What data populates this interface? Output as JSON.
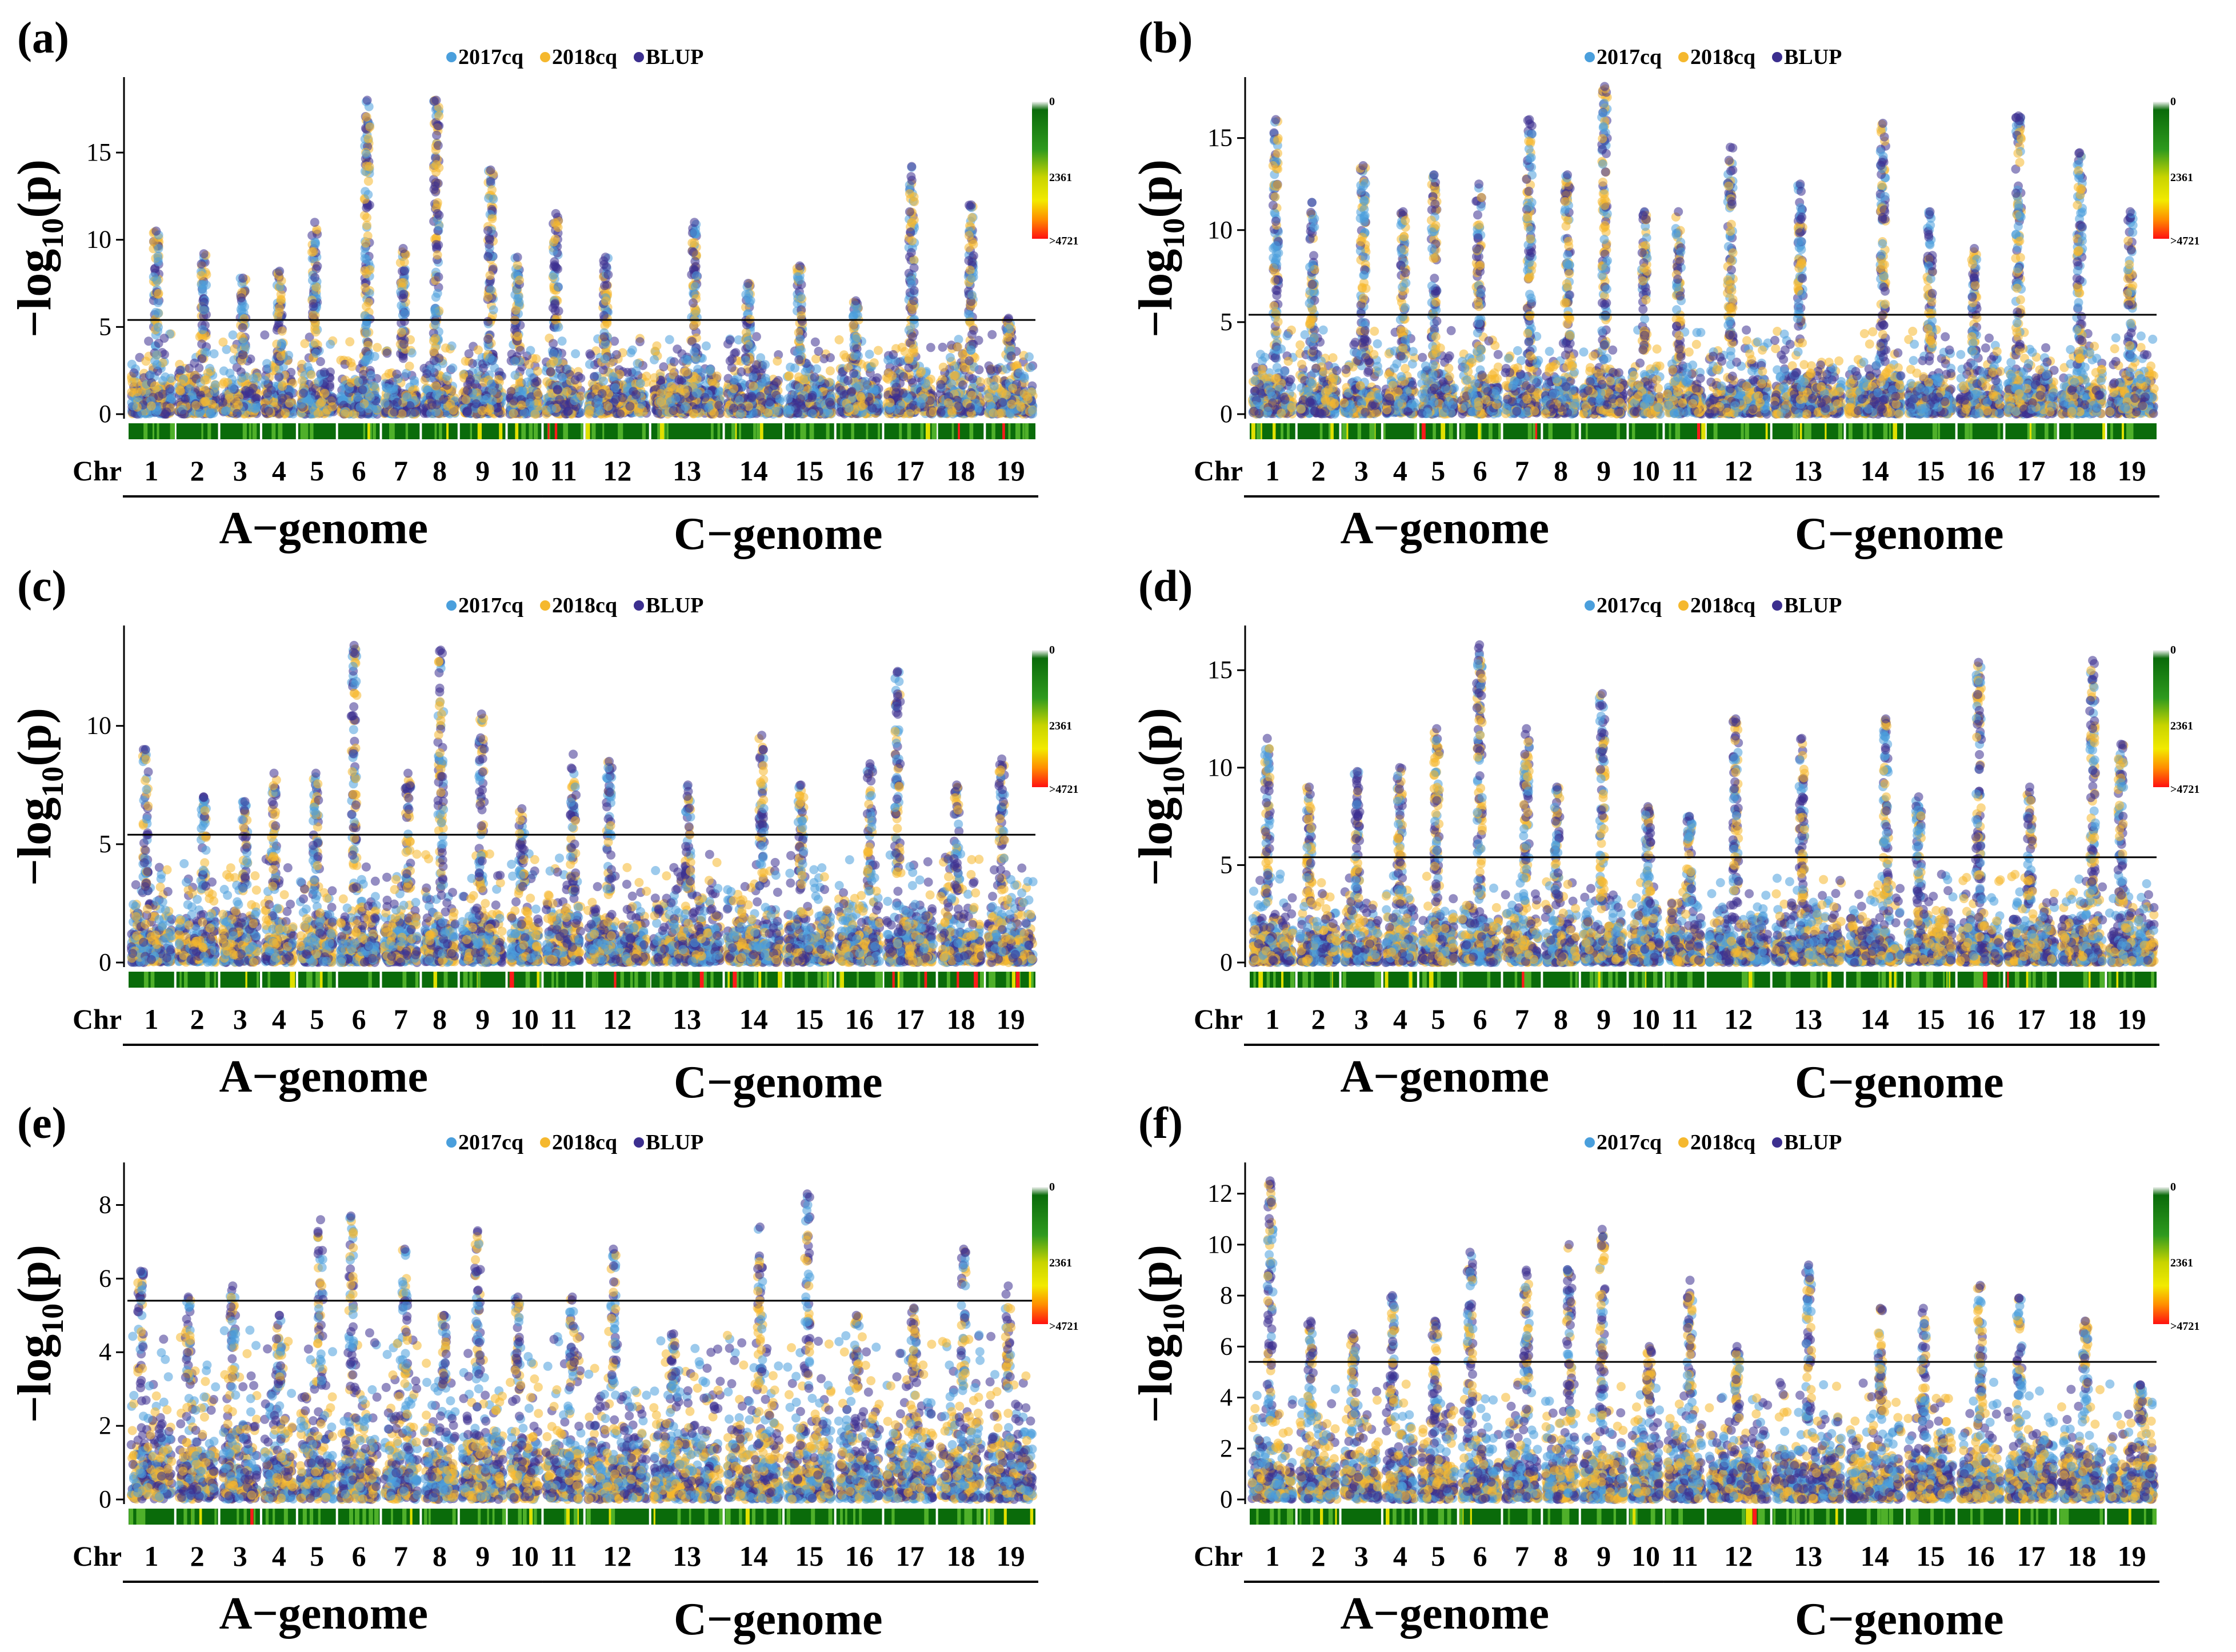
{
  "colors": {
    "series_2017cq": "#4a9fdc",
    "series_2018cq": "#f5b82e",
    "series_blup": "#3c2f8f",
    "threshold": "#000000",
    "density_low": "#0a6b0a",
    "density_mid": "#e0e000",
    "density_high": "#ff1a1a"
  },
  "chart_data": [
    {
      "type": "scatter",
      "panel_label": "(a)",
      "legend": [
        "2017cq",
        "2018cq",
        "BLUP"
      ],
      "ylabel_main": "−log",
      "ylabel_sub": "10",
      "ylabel_end": "(p)",
      "ylim": [
        0,
        19
      ],
      "yticks": [
        0,
        5,
        10,
        15
      ],
      "threshold": 5.4,
      "xlabel_prefix": "Chr",
      "chromosomes": [
        "1",
        "2",
        "3",
        "4",
        "5",
        "6",
        "7",
        "8",
        "9",
        "10",
        "11",
        "12",
        "13",
        "14",
        "15",
        "16",
        "17",
        "18",
        "19"
      ],
      "peaks": [
        10.5,
        9.2,
        7.8,
        8.2,
        11.0,
        18.0,
        9.5,
        18.0,
        14.0,
        9.0,
        11.5,
        9.0,
        11.0,
        7.5,
        8.5,
        6.5,
        14.2,
        12.0,
        5.5
      ],
      "density_scale": {
        "min_label": "0",
        "mid_label": "2361",
        "max_label": ">4721"
      },
      "groups": [
        {
          "label": "A−genome",
          "chromosomes": "1-10"
        },
        {
          "label": "C−genome",
          "chromosomes": "11-19"
        }
      ]
    },
    {
      "type": "scatter",
      "panel_label": "(b)",
      "legend": [
        "2017cq",
        "2018cq",
        "BLUP"
      ],
      "ylabel_main": "−log",
      "ylabel_sub": "10",
      "ylabel_end": "(p)",
      "ylim": [
        0,
        18
      ],
      "yticks": [
        0,
        5,
        10,
        15
      ],
      "threshold": 5.4,
      "xlabel_prefix": "Chr",
      "chromosomes": [
        "1",
        "2",
        "3",
        "4",
        "5",
        "6",
        "7",
        "8",
        "9",
        "10",
        "11",
        "12",
        "13",
        "14",
        "15",
        "16",
        "17",
        "18",
        "19"
      ],
      "peaks": [
        16.0,
        11.5,
        13.5,
        11.0,
        13.0,
        12.5,
        16.0,
        13.0,
        17.8,
        11.0,
        11.0,
        14.5,
        12.5,
        15.8,
        11.0,
        9.0,
        16.2,
        14.2,
        11.0
      ],
      "density_scale": {
        "min_label": "0",
        "mid_label": "2361",
        "max_label": ">4721"
      },
      "groups": [
        {
          "label": "A−genome",
          "chromosomes": "1-10"
        },
        {
          "label": "C−genome",
          "chromosomes": "11-19"
        }
      ]
    },
    {
      "type": "scatter",
      "panel_label": "(c)",
      "legend": [
        "2017cq",
        "2018cq",
        "BLUP"
      ],
      "ylabel_main": "−log",
      "ylabel_sub": "10",
      "ylabel_end": "(p)",
      "ylim": [
        0,
        14
      ],
      "yticks": [
        0,
        5,
        10
      ],
      "threshold": 5.4,
      "xlabel_prefix": "Chr",
      "chromosomes": [
        "1",
        "2",
        "3",
        "4",
        "5",
        "6",
        "7",
        "8",
        "9",
        "10",
        "11",
        "12",
        "13",
        "14",
        "15",
        "16",
        "17",
        "18",
        "19"
      ],
      "peaks": [
        9.0,
        7.0,
        6.8,
        8.0,
        8.0,
        13.4,
        8.0,
        13.2,
        10.5,
        6.5,
        8.8,
        8.5,
        7.5,
        9.6,
        7.5,
        8.4,
        12.3,
        7.5,
        8.6
      ],
      "density_scale": {
        "min_label": "0",
        "mid_label": "2361",
        "max_label": ">4721"
      },
      "groups": [
        {
          "label": "A−genome",
          "chromosomes": "1-10"
        },
        {
          "label": "C−genome",
          "chromosomes": "11-19"
        }
      ]
    },
    {
      "type": "scatter",
      "panel_label": "(d)",
      "legend": [
        "2017cq",
        "2018cq",
        "BLUP"
      ],
      "ylabel_main": "−log",
      "ylabel_sub": "10",
      "ylabel_end": "(p)",
      "ylim": [
        0,
        17
      ],
      "yticks": [
        0,
        5,
        10,
        15
      ],
      "threshold": 5.4,
      "xlabel_prefix": "Chr",
      "chromosomes": [
        "1",
        "2",
        "3",
        "4",
        "5",
        "6",
        "7",
        "8",
        "9",
        "10",
        "11",
        "12",
        "13",
        "14",
        "15",
        "16",
        "17",
        "18",
        "19"
      ],
      "peaks": [
        11.5,
        9.0,
        9.8,
        10.0,
        12.0,
        16.3,
        12.0,
        9.0,
        13.8,
        8.0,
        7.5,
        12.5,
        11.5,
        12.5,
        8.5,
        15.4,
        9.0,
        15.5,
        11.2
      ],
      "density_scale": {
        "min_label": "0",
        "mid_label": "2361",
        "max_label": ">4721"
      },
      "groups": [
        {
          "label": "A−genome",
          "chromosomes": "1-10"
        },
        {
          "label": "C−genome",
          "chromosomes": "11-19"
        }
      ]
    },
    {
      "type": "scatter",
      "panel_label": "(e)",
      "legend": [
        "2017cq",
        "2018cq",
        "BLUP"
      ],
      "ylabel_main": "−log",
      "ylabel_sub": "10",
      "ylabel_end": "(p)",
      "ylim": [
        0,
        9
      ],
      "yticks": [
        0,
        2,
        4,
        6,
        8
      ],
      "threshold": 5.4,
      "xlabel_prefix": "Chr",
      "chromosomes": [
        "1",
        "2",
        "3",
        "4",
        "5",
        "6",
        "7",
        "8",
        "9",
        "10",
        "11",
        "12",
        "13",
        "14",
        "15",
        "16",
        "17",
        "18",
        "19"
      ],
      "peaks": [
        6.2,
        5.5,
        5.8,
        5.0,
        7.6,
        7.7,
        6.8,
        5.0,
        7.3,
        5.5,
        5.5,
        6.8,
        4.5,
        7.4,
        8.3,
        5.0,
        5.2,
        6.8,
        5.8
      ],
      "density_scale": {
        "min_label": "0",
        "mid_label": "2361",
        "max_label": ">4721"
      },
      "groups": [
        {
          "label": "A−genome",
          "chromosomes": "1-10"
        },
        {
          "label": "C−genome",
          "chromosomes": "11-19"
        }
      ]
    },
    {
      "type": "scatter",
      "panel_label": "(f)",
      "legend": [
        "2017cq",
        "2018cq",
        "BLUP"
      ],
      "ylabel_main": "−log",
      "ylabel_sub": "10",
      "ylabel_end": "(p)",
      "ylim": [
        0,
        13
      ],
      "yticks": [
        0,
        2,
        4,
        6,
        8,
        10,
        12
      ],
      "threshold": 5.4,
      "xlabel_prefix": "Chr",
      "chromosomes": [
        "1",
        "2",
        "3",
        "4",
        "5",
        "6",
        "7",
        "8",
        "9",
        "10",
        "11",
        "12",
        "13",
        "14",
        "15",
        "16",
        "17",
        "18",
        "19"
      ],
      "peaks": [
        12.5,
        7.0,
        6.5,
        8.0,
        7.0,
        9.7,
        9.0,
        10.0,
        10.6,
        6.0,
        8.6,
        6.0,
        9.2,
        7.5,
        7.5,
        8.4,
        7.9,
        7.0,
        4.5
      ],
      "density_scale": {
        "min_label": "0",
        "mid_label": "2361",
        "max_label": ">4721"
      },
      "groups": [
        {
          "label": "A−genome",
          "chromosomes": "1-10"
        },
        {
          "label": "C−genome",
          "chromosomes": "11-19"
        }
      ]
    }
  ]
}
